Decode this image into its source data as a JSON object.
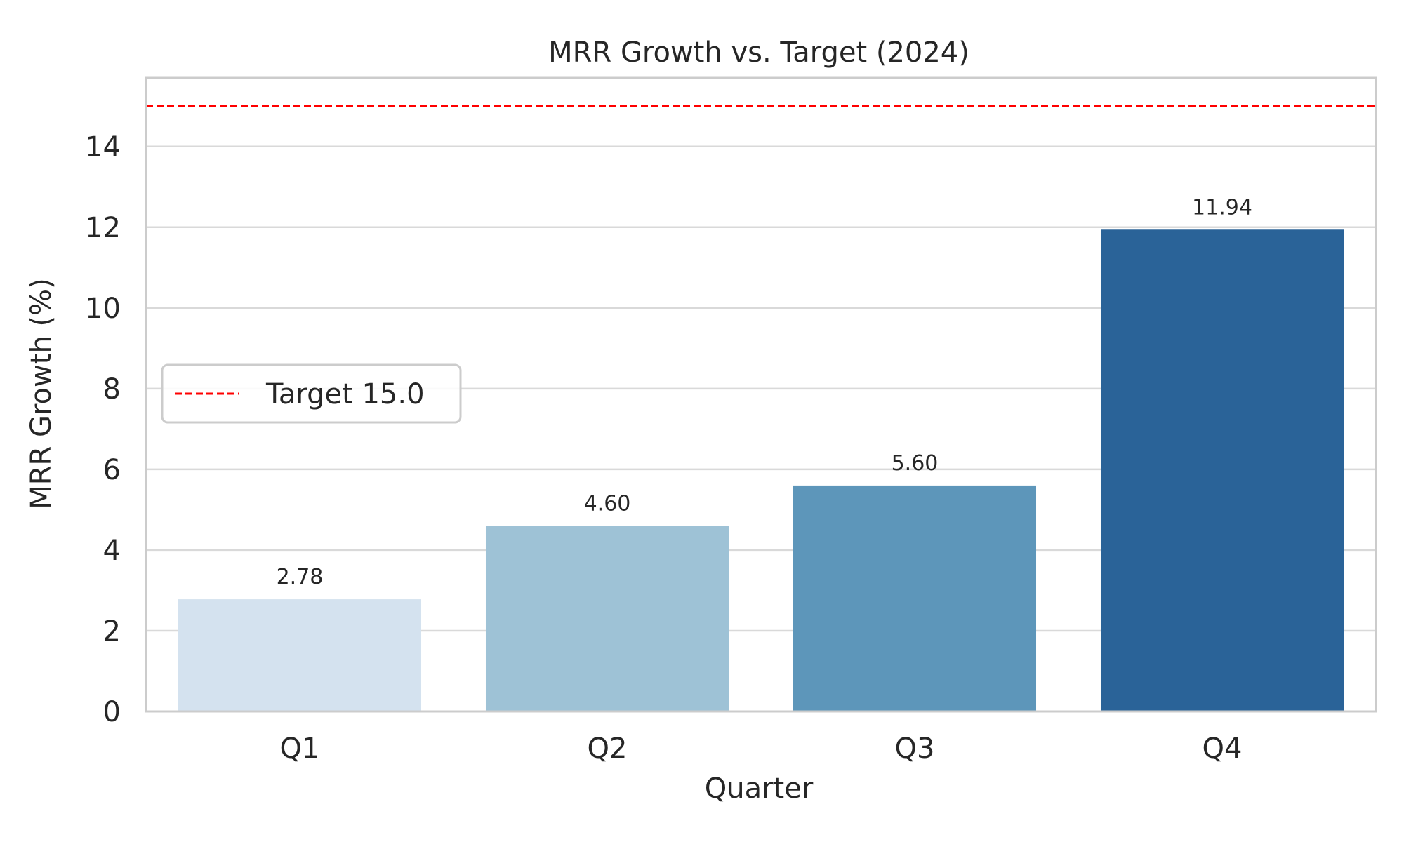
{
  "chart_data": {
    "type": "bar",
    "title": "MRR Growth vs. Target (2024)",
    "xlabel": "Quarter",
    "ylabel": "MRR Growth (%)",
    "categories": [
      "Q1",
      "Q2",
      "Q3",
      "Q4"
    ],
    "values": [
      2.78,
      4.6,
      5.6,
      11.94
    ],
    "value_labels": [
      "2.78",
      "4.60",
      "5.60",
      "11.94"
    ],
    "bar_colors": [
      "#d4e2ef",
      "#9ec2d6",
      "#5d96ba",
      "#2a6398"
    ],
    "ylim": [
      0,
      15.7
    ],
    "y_ticks": [
      0,
      2,
      4,
      6,
      8,
      10,
      12,
      14
    ],
    "y_tick_labels": [
      "0",
      "2",
      "4",
      "6",
      "8",
      "10",
      "12",
      "14"
    ],
    "grid": "horizontal",
    "reference_line": {
      "value": 15.0,
      "color": "#ff0000",
      "style": "dashed",
      "label": "Target 15.0"
    },
    "legend": {
      "placement": "center-left",
      "entries": [
        "Target 15.0"
      ]
    }
  }
}
